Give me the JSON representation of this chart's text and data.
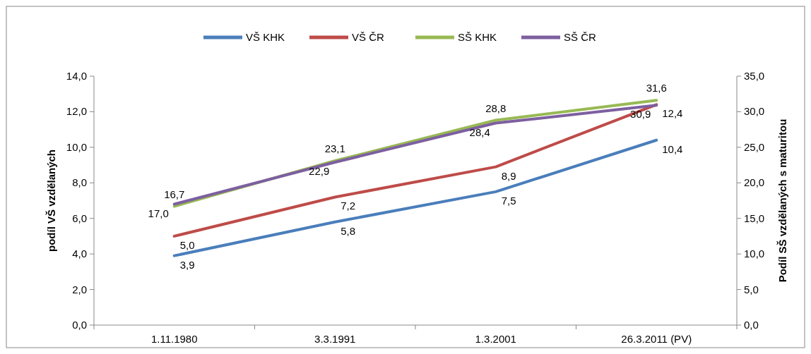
{
  "chart_data": {
    "type": "line",
    "categories": [
      "1.11.1980",
      "3.3.1991",
      "1.3.2001",
      "26.3.2011 (PV)"
    ],
    "ylabel": "podíl VŠ vzdělaných",
    "y2label": "Podíl SŠ vzdělaných s maturitou",
    "ylim": [
      0,
      14
    ],
    "yticks": [
      {
        "value": 0,
        "label": "0,0"
      },
      {
        "value": 2,
        "label": "2,0"
      },
      {
        "value": 4,
        "label": "4,0"
      },
      {
        "value": 6,
        "label": "6,0"
      },
      {
        "value": 8,
        "label": "8,0"
      },
      {
        "value": 10,
        "label": "10,0"
      },
      {
        "value": 12,
        "label": "12,0"
      },
      {
        "value": 14,
        "label": "14,0"
      }
    ],
    "y2lim": [
      0,
      35
    ],
    "y2ticks": [
      {
        "value": 0,
        "label": "0,0"
      },
      {
        "value": 5,
        "label": "5,0"
      },
      {
        "value": 10,
        "label": "10,0"
      },
      {
        "value": 15,
        "label": "15,0"
      },
      {
        "value": 20,
        "label": "20,0"
      },
      {
        "value": 25,
        "label": "25,0"
      },
      {
        "value": 30,
        "label": "30,0"
      },
      {
        "value": 35,
        "label": "35,0"
      }
    ],
    "series": [
      {
        "name": "VŠ KHK",
        "color": "#4a7ebb",
        "values": [
          3.9,
          5.8,
          7.5,
          10.4
        ],
        "value_labels": [
          "3,9",
          "5,8",
          "7,5",
          "10,4"
        ]
      },
      {
        "name": "VŠ ČR",
        "color": "#be4b48",
        "values": [
          5.0,
          7.2,
          8.9,
          12.4
        ],
        "value_labels": [
          "5,0",
          "7,2",
          "8,9",
          "12,4"
        ]
      },
      {
        "name": "SŠ KHK",
        "color": "#98b954",
        "axis": "y2",
        "values": [
          16.7,
          23.1,
          28.8,
          31.6
        ],
        "value_labels": [
          "16,7",
          "23,1",
          "28,8",
          "31,6"
        ]
      },
      {
        "name": "SŠ ČR",
        "color": "#7d5fa0",
        "axis": "y2",
        "values": [
          17.0,
          22.9,
          28.4,
          30.9
        ],
        "value_labels": [
          "17,0",
          "22,9",
          "28,4",
          "30,9"
        ]
      }
    ],
    "legend": "top",
    "grid": false,
    "marker": "none",
    "line_style": "solid"
  }
}
